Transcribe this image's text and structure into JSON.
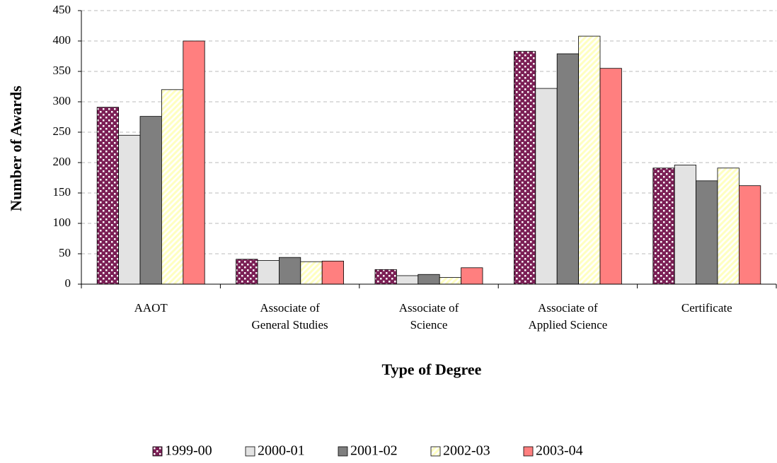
{
  "chart_data": {
    "type": "bar",
    "x_label": "Type of Degree",
    "y_label": "Number of Awards",
    "categories": [
      "AAOT",
      "Associate of\nGeneral Studies",
      "Associate of\nScience",
      "Associate of\nApplied Science",
      "Certificate"
    ],
    "series": [
      {
        "name": "1999-00",
        "color": "#7b1f55",
        "pattern": "dots",
        "values": [
          291,
          41,
          24,
          383,
          191
        ]
      },
      {
        "name": "2000-01",
        "color": "#e3e3e3",
        "values": [
          245,
          39,
          14,
          322,
          196
        ]
      },
      {
        "name": "2001-02",
        "color": "#7f7f7f",
        "values": [
          276,
          44,
          16,
          379,
          170
        ]
      },
      {
        "name": "2002-03",
        "color": "#ffffc0",
        "pattern": "stripes",
        "values": [
          320,
          37,
          11,
          408,
          191
        ]
      },
      {
        "name": "2003-04",
        "color": "#ff7f7f",
        "values": [
          400,
          38,
          27,
          355,
          162
        ]
      }
    ],
    "ylim": [
      0,
      450
    ],
    "yticks": [
      0,
      50,
      100,
      150,
      200,
      250,
      300,
      350,
      400,
      450
    ],
    "grid": true,
    "legend": "bottom"
  }
}
